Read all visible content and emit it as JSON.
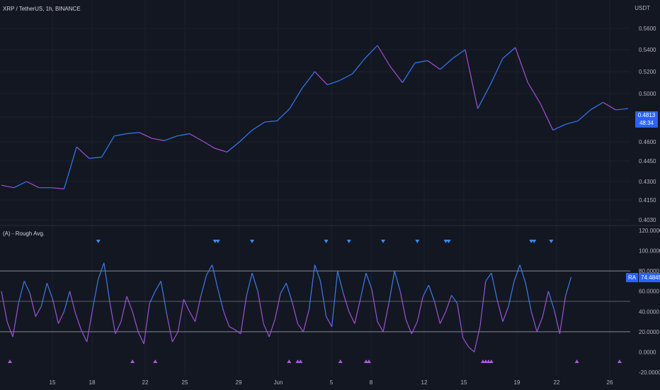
{
  "header": {
    "symbol_title": "XRP / TetherUS, 1h, BINANCE",
    "axis_unit": "USDT"
  },
  "price_tag": {
    "price": "0.4813",
    "countdown": "48:34"
  },
  "indicator": {
    "title": "(A) - Rough Avg.",
    "tag_label": "RA",
    "tag_value": "74.4845"
  },
  "colors": {
    "background": "#131722",
    "price_up": "#2f7cf6",
    "price_down": "#a54fd2",
    "indicator_line_high": "#3d7be8",
    "indicator_line_low": "#9c52d4",
    "signal_sell": "#3d8bf5",
    "signal_buy": "#a95bd8",
    "level_line": "#a3a6af"
  },
  "chart_data": [
    {
      "type": "line",
      "title": "XRP / TetherUS, 1h, BINANCE",
      "ylabel": "USDT",
      "ylim": [
        0.396,
        0.575
      ],
      "y_ticks": [
        "0.5600",
        "0.5400",
        "0.5200",
        "0.5000",
        "0.4813",
        "0.4600",
        "0.4450",
        "0.4300",
        "0.4150",
        "0.4030"
      ],
      "x_ticks": [
        "15",
        "18",
        "22",
        "25",
        "29",
        "Jun",
        "5",
        "8",
        "12",
        "15",
        "19",
        "22",
        "26"
      ],
      "series": [
        {
          "x": [
            0,
            2,
            4,
            6,
            8,
            10,
            12,
            14,
            16,
            18,
            20,
            22,
            24,
            26,
            28,
            30,
            32,
            34,
            36,
            38,
            40,
            42,
            44,
            46,
            48,
            50,
            52,
            54,
            56,
            58,
            60,
            62,
            64,
            66,
            68,
            70,
            72,
            74,
            76,
            78,
            80,
            82,
            84,
            86,
            88,
            90,
            92,
            94,
            96,
            98,
            100
          ],
          "values": [
            0.427,
            0.425,
            0.43,
            0.425,
            0.425,
            0.424,
            0.456,
            0.447,
            0.448,
            0.465,
            0.467,
            0.468,
            0.463,
            0.461,
            0.465,
            0.467,
            0.461,
            0.455,
            0.452,
            0.46,
            0.47,
            0.477,
            0.478,
            0.488,
            0.505,
            0.52,
            0.508,
            0.512,
            0.518,
            0.532,
            0.544,
            0.525,
            0.51,
            0.528,
            0.53,
            0.522,
            0.532,
            0.54,
            0.488,
            0.508,
            0.532,
            0.542,
            0.51,
            0.492,
            0.47,
            0.475,
            0.478,
            0.487,
            0.493,
            0.487,
            0.488
          ]
        }
      ]
    },
    {
      "type": "line",
      "title": "(A) - Rough Avg.",
      "ylim": [
        -24,
        124
      ],
      "y_ticks": [
        "120.0000",
        "100.0000",
        "80.0000",
        "60.0000",
        "40.0000",
        "20.0000",
        "0.0000",
        "-20.0000"
      ],
      "levels": [
        80,
        50,
        20
      ],
      "series": [
        {
          "name": "RA",
          "x": [
            0,
            1,
            2,
            3,
            4,
            5,
            6,
            7,
            8,
            9,
            10,
            11,
            12,
            13,
            14,
            15,
            16,
            17,
            18,
            19,
            20,
            21,
            22,
            23,
            24,
            25,
            26,
            27,
            28,
            29,
            30,
            31,
            32,
            33,
            34,
            35,
            36,
            37,
            38,
            39,
            40,
            41,
            42,
            43,
            44,
            45,
            46,
            47,
            48,
            49,
            50,
            51,
            52,
            53,
            54,
            55,
            56,
            57,
            58,
            59,
            60,
            61,
            62,
            63,
            64,
            65,
            66,
            67,
            68,
            69,
            70,
            71,
            72,
            73,
            74,
            75,
            76,
            77,
            78,
            79,
            80,
            81,
            82,
            83,
            84,
            85,
            86,
            87,
            88,
            89,
            90,
            91,
            92,
            93,
            94,
            95,
            96,
            97,
            98,
            99,
            100
          ],
          "values": [
            60,
            30,
            15,
            48,
            70,
            58,
            35,
            45,
            68,
            52,
            28,
            40,
            60,
            38,
            22,
            10,
            42,
            72,
            88,
            50,
            18,
            30,
            55,
            40,
            20,
            8,
            48,
            60,
            70,
            38,
            10,
            20,
            52,
            40,
            30,
            55,
            76,
            86,
            62,
            40,
            25,
            22,
            18,
            55,
            78,
            60,
            28,
            15,
            32,
            58,
            68,
            50,
            28,
            20,
            42,
            86,
            70,
            35,
            25,
            80,
            58,
            40,
            28,
            52,
            78,
            62,
            30,
            20,
            48,
            80,
            60,
            32,
            18,
            30,
            55,
            66,
            50,
            28,
            40,
            56,
            48,
            14,
            5,
            0,
            25,
            70,
            78,
            52,
            30,
            45,
            70,
            86,
            68,
            40,
            20,
            35,
            60,
            42,
            18,
            55,
            74
          ]
        }
      ],
      "signals_sell_x": [
        17,
        37.5,
        38,
        44,
        57,
        61,
        67,
        73,
        78,
        78.5,
        93,
        93.5,
        96.5
      ],
      "signals_buy_x": [
        1.5,
        23,
        27,
        50.5,
        52,
        52.5,
        59.5,
        64,
        64.5,
        84.5,
        85,
        85.5,
        86,
        101,
        108.5
      ]
    }
  ]
}
